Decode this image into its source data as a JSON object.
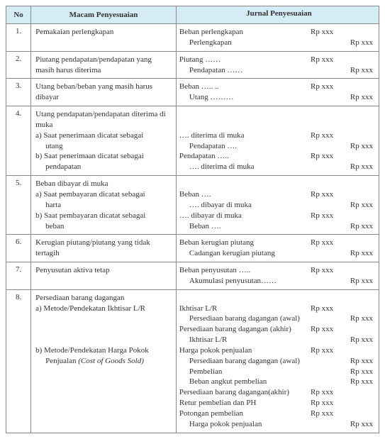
{
  "headers": {
    "no": "No",
    "desc": "Macam Penyesuaian",
    "journal": "Jurnal Penyesuaian"
  },
  "amt": "Rp xxx",
  "rows": [
    {
      "no": "1.",
      "desc": [
        "Pemakaian perlengkapan"
      ],
      "journal": [
        {
          "acc": "Beban perlengkapan",
          "d": true
        },
        {
          "acc": "Perlengkapan",
          "c": true,
          "indent": true
        }
      ]
    },
    {
      "no": "2.",
      "desc": [
        "Piutang pendapatan/pendapatan yang masih harus diterima"
      ],
      "journal": [
        {
          "acc": "Piutang ……",
          "d": true
        },
        {
          "acc": "Pendapatan ……",
          "c": true,
          "indent": true
        }
      ]
    },
    {
      "no": "3.",
      "desc": [
        "Utang beban/beban yang masih harus dibayar"
      ],
      "journal": [
        {
          "acc": "Beban ….. ..",
          "d": true
        },
        {
          "acc": "Utang ………",
          "c": true,
          "indent": true
        }
      ]
    },
    {
      "no": "4.",
      "desc": [
        "Utang pendapatan/pendapatan diterima di muka",
        {
          "t": "a) Saat penerimaan dicatat sebagai",
          "sub": true
        },
        {
          "t": "utang",
          "sub2": true
        },
        {
          "t": "b) Saat penerimaan dicatat sebagai",
          "sub": true
        },
        {
          "t": "pendapatan",
          "sub2": true
        }
      ],
      "journal": [
        {
          "acc": "",
          "blank": true
        },
        {
          "acc": "",
          "blank": true
        },
        {
          "acc": "…. diterima di muka",
          "d": true
        },
        {
          "acc": "Pendapatan ….",
          "c": true,
          "indent": true
        },
        {
          "acc": "Pendapatan …..",
          "d": true
        },
        {
          "acc": "…. diterima di muka",
          "c": true,
          "indent": true
        }
      ]
    },
    {
      "no": "5.",
      "desc": [
        "Beban dibayar di muka",
        {
          "t": "a) Saat pembayaran dicatat sebagai",
          "sub": true
        },
        {
          "t": "harta",
          "sub2": true
        },
        {
          "t": "b) Saat pembayaran dicatat sebagai",
          "sub": true
        },
        {
          "t": "beban",
          "sub2": true
        }
      ],
      "journal": [
        {
          "acc": "",
          "blank": true
        },
        {
          "acc": "Beban ….",
          "d": true
        },
        {
          "acc": "…. dibayar di muka",
          "c": true,
          "indent": true
        },
        {
          "acc": "…. dibayar di muka",
          "d": true
        },
        {
          "acc": "Beban ….",
          "c": true,
          "indent": true
        }
      ]
    },
    {
      "no": "6.",
      "desc": [
        "Kerugian piutang/piutang yang tidak tertagih"
      ],
      "journal": [
        {
          "acc": "Beban kerugian piutang",
          "d": true
        },
        {
          "acc": "Cadangan kerugian piutang",
          "c": true,
          "indent": true
        }
      ]
    },
    {
      "no": "7.",
      "desc": [
        "Penyusutan aktiva tetap"
      ],
      "journal": [
        {
          "acc": "Beban penyusutan …..",
          "d": true
        },
        {
          "acc": "Akumulasi penyusutan……",
          "c": true,
          "indent": true
        }
      ]
    },
    {
      "no": "8.",
      "desc": [
        "Persediaan barang dagangan",
        {
          "t": "a) Metode/Pendekatan Ikhtisar L/R",
          "sub": true
        },
        {
          "t": "",
          "sub": true
        },
        {
          "t": "",
          "sub": true
        },
        {
          "t": "",
          "sub": true
        },
        {
          "t": "b) Metode/Pendekatan Harga Pokok",
          "sub": true
        },
        {
          "t": "Penjualan (Cost of Goods Sold)",
          "sub2": true,
          "italic": true
        }
      ],
      "journal": [
        {
          "acc": "",
          "blank": true
        },
        {
          "acc": "Ikhtisar L/R",
          "d": true
        },
        {
          "acc": "Persediaan barang dagangan (awal)",
          "c": true,
          "indent": true
        },
        {
          "acc": "Persediaan barang dagangan (akhir)",
          "d": true
        },
        {
          "acc": "Ikhtisar L/R",
          "c": true,
          "indent": true
        },
        {
          "acc": "Harga pokok penjualan",
          "d": true
        },
        {
          "acc": "Persediaan barang dagangan (awal)",
          "c": true,
          "indent": true
        },
        {
          "acc": "Pembelian",
          "c": true,
          "indent": true
        },
        {
          "acc": "Beban angkut pembelian",
          "c": true,
          "indent": true
        },
        {
          "acc": "Persediaan barang dagangan(akhir)",
          "d": true
        },
        {
          "acc": "Retur pembelian dan PH",
          "d": true
        },
        {
          "acc": "Potongan pembelian",
          "d": true
        },
        {
          "acc": "Harga pokok penjualan",
          "c": true,
          "indent": true
        }
      ]
    }
  ]
}
